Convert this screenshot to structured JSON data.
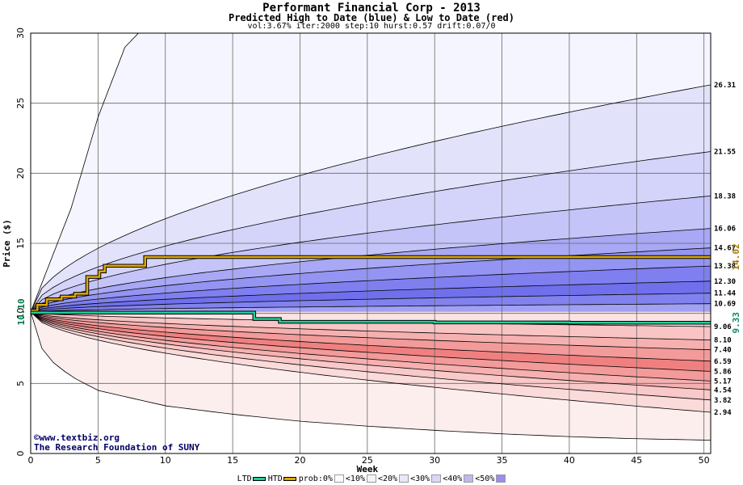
{
  "chart_data": {
    "type": "area",
    "title": "Performant Financial Corp - 2013",
    "subtitle": "Predicted High to Date (blue) &  Low to Date (red)",
    "params": "vol:3.67% iter:2000 step:10 hurst:0.57 drift:0.07/0",
    "xlabel": "Week",
    "ylabel": "Price ($)",
    "xlim": [
      0,
      50.5
    ],
    "ylim": [
      0,
      30
    ],
    "x_ticks": [
      0,
      5,
      10,
      15,
      20,
      25,
      30,
      35,
      40,
      45,
      50
    ],
    "y_ticks": [
      0,
      5,
      10,
      15,
      20,
      25,
      30
    ],
    "start_price": 10.1,
    "start_price_label": "10.10",
    "grid": true,
    "upper_bands": [
      {
        "end": 26.31,
        "label": "26.31"
      },
      {
        "end": 21.55,
        "label": "21.55"
      },
      {
        "end": 18.38,
        "label": "18.38"
      },
      {
        "end": 16.06,
        "label": "16.06"
      },
      {
        "end": 14.67,
        "label": "14.67"
      },
      {
        "end": 13.38,
        "label": "13.38"
      },
      {
        "end": 12.3,
        "label": "12.30"
      },
      {
        "end": 11.44,
        "label": "11.44"
      },
      {
        "end": 10.69,
        "label": "10.69"
      }
    ],
    "upper_outer": {
      "x": [
        0,
        3,
        5,
        7,
        8
      ],
      "y": [
        10.1,
        17.5,
        24,
        29,
        30
      ]
    },
    "lower_bands": [
      {
        "end": 9.06,
        "label": "9.06"
      },
      {
        "end": 8.1,
        "label": "8.10"
      },
      {
        "end": 7.4,
        "label": "7.40"
      },
      {
        "end": 6.59,
        "label": "6.59"
      },
      {
        "end": 5.86,
        "label": "5.86"
      },
      {
        "end": 5.17,
        "label": "5.17"
      },
      {
        "end": 4.54,
        "label": "4.54"
      },
      {
        "end": 3.82,
        "label": "3.82"
      },
      {
        "end": 2.94,
        "label": "2.94"
      }
    ],
    "lower_outer": {
      "x": [
        0,
        1,
        3,
        5,
        10,
        15,
        20,
        25,
        30,
        35,
        40,
        45,
        50.5
      ],
      "y": [
        10.1,
        7.0,
        5.5,
        4.5,
        3.4,
        2.8,
        2.3,
        1.95,
        1.65,
        1.4,
        1.2,
        1.05,
        0.95
      ]
    },
    "series": [
      {
        "name": "HTD",
        "color": "#e0a800",
        "x": [
          0,
          0.5,
          1.2,
          2.3,
          3.3,
          4.2,
          5.1,
          5.5,
          8.5,
          50.5
        ],
        "y": [
          10.2,
          10.6,
          11.0,
          11.2,
          11.4,
          12.6,
          13.0,
          13.4,
          14.02,
          14.02
        ],
        "end_label": "14.02"
      },
      {
        "name": "LTD",
        "color": "#22cc99",
        "x": [
          0,
          1,
          16.2,
          16.6,
          18,
          18.5,
          30,
          40,
          50.5
        ],
        "y": [
          10.05,
          10.05,
          10.05,
          9.6,
          9.6,
          9.4,
          9.35,
          9.33,
          9.33
        ],
        "end_label": "9.33"
      }
    ],
    "blue_fills": [
      "#f5f5ff",
      "#e2e2fb",
      "#d4d4fa",
      "#c4c4f8",
      "#a8a8f5",
      "#9494f2",
      "#7f7ff0",
      "#7070ec",
      "#8282ee",
      "#a0a0f4",
      "#d0d0fa"
    ],
    "red_fills": [
      "#fbe3e3",
      "#f8c4c4",
      "#f6b0b0",
      "#f39a9a",
      "#f08080",
      "#f39a9a",
      "#f6b0b0",
      "#f9c8c8",
      "#fbdada",
      "#fdeeee"
    ],
    "legend": [
      {
        "label": "LTD",
        "kind": "line",
        "color": "#22cc99"
      },
      {
        "label": "HTD",
        "kind": "line",
        "color": "#e0a800"
      },
      {
        "label": "prob:0%",
        "kind": "swatch",
        "color": "#ffffff"
      },
      {
        "label": "<10%",
        "kind": "swatch",
        "color": "#f4f4ff"
      },
      {
        "label": "<20%",
        "kind": "swatch",
        "color": "#e8e8fc"
      },
      {
        "label": "<30%",
        "kind": "swatch",
        "color": "#d8d8f8"
      },
      {
        "label": "<40%",
        "kind": "swatch",
        "color": "#c0b8f0"
      },
      {
        "label": "<50%",
        "kind": "swatch",
        "color": "#9a8cf0"
      }
    ]
  },
  "credits": {
    "site": "©www.textbiz.org",
    "org": "The Research Foundation of SUNY"
  }
}
